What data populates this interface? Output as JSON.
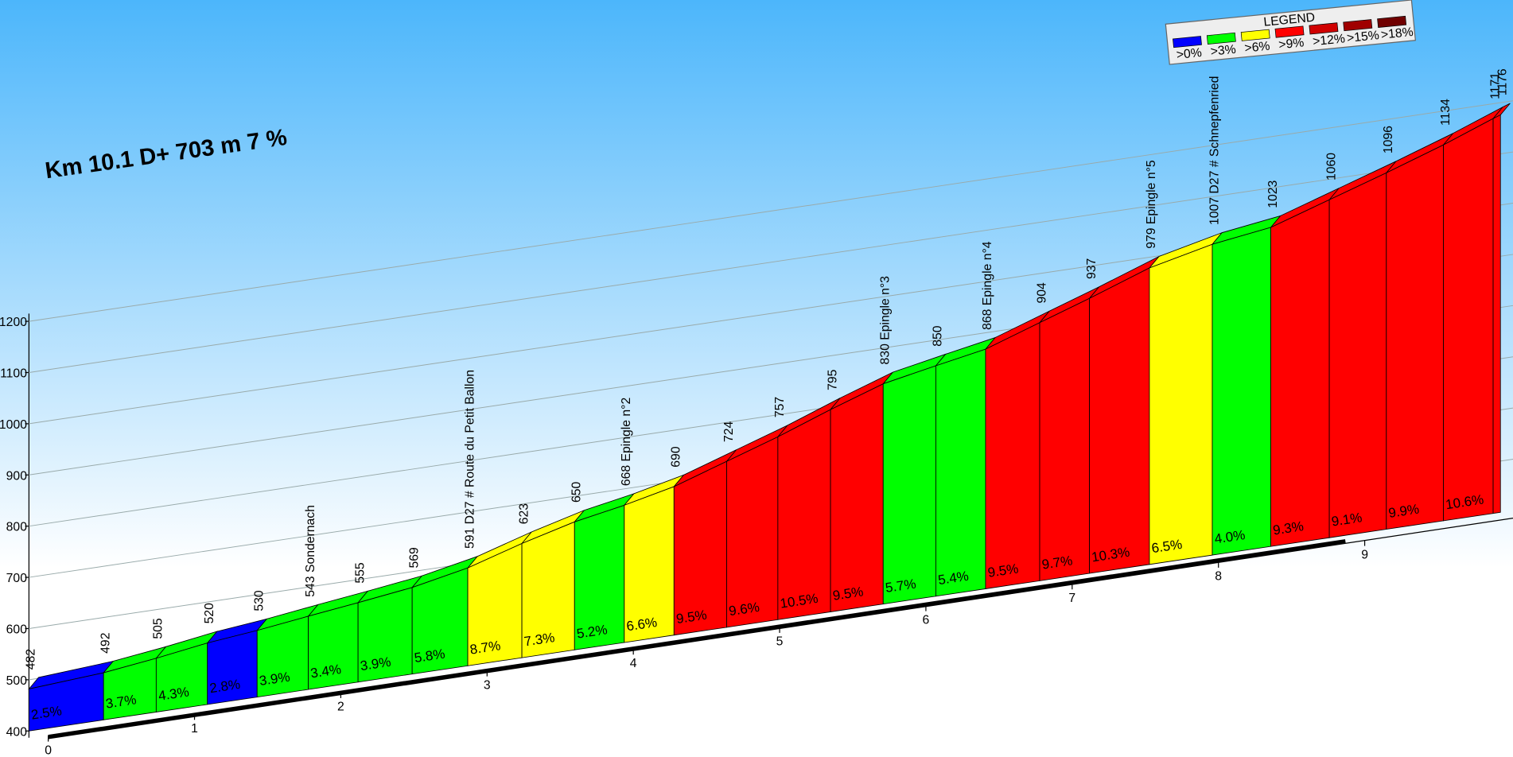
{
  "chart_data": {
    "type": "climb-profile",
    "title": "Km 10.1 D+ 703 m 7 %",
    "distance_km": [
      0,
      0.51,
      0.87,
      1.22,
      1.56,
      1.91,
      2.25,
      2.62,
      3.0,
      3.37,
      3.73,
      4.07,
      4.41,
      4.77,
      5.12,
      5.48,
      5.84,
      6.2,
      6.54,
      6.91,
      7.25,
      7.66,
      8.09,
      8.49,
      8.89,
      9.28,
      9.67,
      10.01,
      10.06
    ],
    "altitudes": [
      482,
      492,
      505,
      520,
      530,
      543,
      555,
      569,
      591,
      623,
      650,
      668,
      690,
      724,
      757,
      795,
      830,
      850,
      868,
      904,
      937,
      979,
      1007,
      1023,
      1060,
      1096,
      1134,
      1171,
      1176
    ],
    "value_labels": [
      "482",
      "492",
      "505",
      "520",
      "530",
      "543 Sondernach",
      "555",
      "569",
      "591 D27 # Route du Petit Ballon",
      "623",
      "650",
      "668 Epingle n°2",
      "690",
      "724",
      "757",
      "795",
      "830 Epingle n°3",
      "850",
      "868 Epingle n°4",
      "904",
      "937",
      "979 Epingle n°5",
      "1007 D27 # Schnepfenried",
      "1023",
      "1060",
      "1096",
      "1134",
      "1171",
      "1176"
    ],
    "segments": {
      "values": [
        2.5,
        3.7,
        4.3,
        2.8,
        3.9,
        3.4,
        3.9,
        5.8,
        8.7,
        7.3,
        5.2,
        6.6,
        9.5,
        9.6,
        10.5,
        9.5,
        5.7,
        5.4,
        9.5,
        9.7,
        10.3,
        6.5,
        4.0,
        9.3,
        9.1,
        9.9,
        10.6,
        null
      ],
      "value_labels": [
        "2.5%",
        "3.7%",
        "4.3%",
        "2.8%",
        "3.9%",
        "3.4%",
        "3.9%",
        "5.8%",
        "8.7%",
        "7.3%",
        "5.2%",
        "6.6%",
        "9.5%",
        "9.6%",
        "10.5%",
        "9.5%",
        "5.7%",
        "5.4%",
        "9.5%",
        "9.7%",
        "10.3%",
        "6.5%",
        "4.0%",
        "9.3%",
        "9.1%",
        "9.9%",
        "10.6%",
        null
      ]
    },
    "legend_title": "LEGEND",
    "legend": [
      {
        "name": ">0%",
        "min": 0,
        "color": "#0000ff"
      },
      {
        "name": ">3%",
        "min": 3,
        "color": "#00ff00"
      },
      {
        "name": ">6%",
        "min": 6,
        "color": "#ffff00"
      },
      {
        "name": ">9%",
        "min": 9,
        "color": "#ff0000"
      },
      {
        "name": ">12%",
        "min": 12,
        "color": "#d00000"
      },
      {
        "name": ">15%",
        "min": 15,
        "color": "#a00000"
      },
      {
        "name": ">18%",
        "min": 18,
        "color": "#700000"
      }
    ],
    "xlim": [
      0,
      10.06
    ],
    "xticks": [
      0,
      1,
      2,
      3,
      4,
      5,
      6,
      7,
      8,
      9
    ],
    "ylim": [
      400,
      1200
    ],
    "yticks": [
      400,
      500,
      600,
      700,
      800,
      900,
      1000,
      1100,
      1200
    ],
    "grid": true
  }
}
